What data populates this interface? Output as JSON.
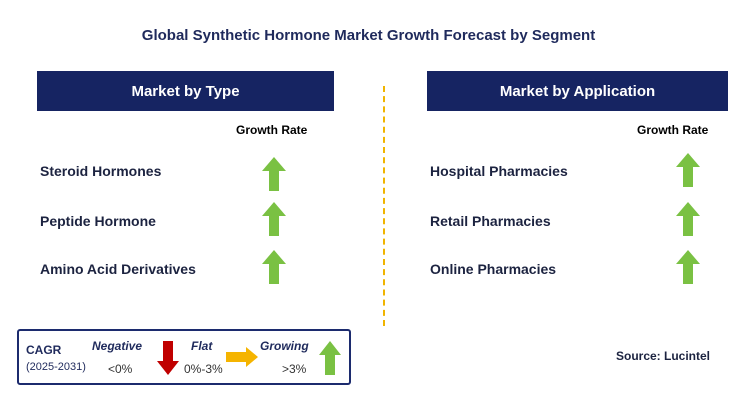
{
  "title": "Global Synthetic Hormone Market Growth Forecast by Segment",
  "left_panel": {
    "header": "Market by Type",
    "growth_label": "Growth Rate",
    "items": [
      {
        "label": "Steroid Hormones",
        "trend": "growing"
      },
      {
        "label": "Peptide Hormone",
        "trend": "growing"
      },
      {
        "label": "Amino Acid Derivatives",
        "trend": "growing"
      }
    ]
  },
  "right_panel": {
    "header": "Market by Application",
    "growth_label": "Growth Rate",
    "items": [
      {
        "label": "Hospital Pharmacies",
        "trend": "growing"
      },
      {
        "label": "Retail Pharmacies",
        "trend": "growing"
      },
      {
        "label": "Online Pharmacies",
        "trend": "growing"
      }
    ]
  },
  "legend": {
    "cagr_label": "CAGR",
    "years": "(2025-2031)",
    "negative": {
      "label": "Negative",
      "range": "<0%"
    },
    "flat": {
      "label": "Flat",
      "range": "0%-3%"
    },
    "growing": {
      "label": "Growing",
      "range": ">3%"
    }
  },
  "source": "Source: Lucintel",
  "colors": {
    "header_bg": "#162462",
    "arrow_up": "#7ac143",
    "arrow_down": "#c00000",
    "arrow_flat": "#f5b400",
    "divider": "#f0b400"
  }
}
